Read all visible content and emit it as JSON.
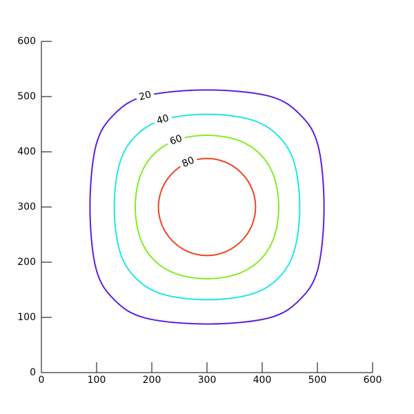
{
  "chart_data": {
    "type": "contour",
    "xlim": [
      0,
      600
    ],
    "ylim": [
      0,
      600
    ],
    "xticks": [
      0,
      100,
      200,
      300,
      400,
      500,
      600
    ],
    "yticks": [
      0,
      100,
      200,
      300,
      400,
      500,
      600
    ],
    "contours": [
      {
        "level": 20,
        "color": "#5a1fe0",
        "x": [
          512,
          501,
          468,
          412,
          300,
          188,
          132,
          99,
          88,
          99,
          132,
          188,
          300,
          412,
          468,
          501
        ],
        "y": [
          300,
          412,
          468,
          501,
          512,
          501,
          468,
          412,
          300,
          188,
          132,
          99,
          88,
          99,
          132,
          188
        ]
      },
      {
        "level": 40,
        "color": "#22e5e5",
        "x": [
          468,
          458,
          429,
          380,
          300,
          220,
          171,
          142,
          132,
          142,
          171,
          220,
          300,
          380,
          429,
          458
        ],
        "y": [
          300,
          380,
          429,
          458,
          468,
          458,
          429,
          380,
          300,
          220,
          171,
          142,
          132,
          142,
          171,
          220
        ]
      },
      {
        "level": 60,
        "color": "#80ee22",
        "x": [
          430,
          421,
          396,
          356,
          300,
          244,
          204,
          179,
          170,
          179,
          204,
          244,
          300,
          356,
          396,
          421
        ],
        "y": [
          300,
          356,
          396,
          421,
          430,
          421,
          396,
          356,
          300,
          244,
          204,
          179,
          170,
          179,
          204,
          244
        ]
      },
      {
        "level": 80,
        "color": "#ee4422",
        "x": [
          388,
          381,
          362,
          334,
          300,
          266,
          238,
          219,
          212,
          219,
          238,
          266,
          300,
          334,
          362,
          381
        ],
        "y": [
          300,
          334,
          362,
          381,
          388,
          381,
          362,
          334,
          300,
          266,
          238,
          219,
          212,
          219,
          238,
          266
        ]
      }
    ]
  }
}
